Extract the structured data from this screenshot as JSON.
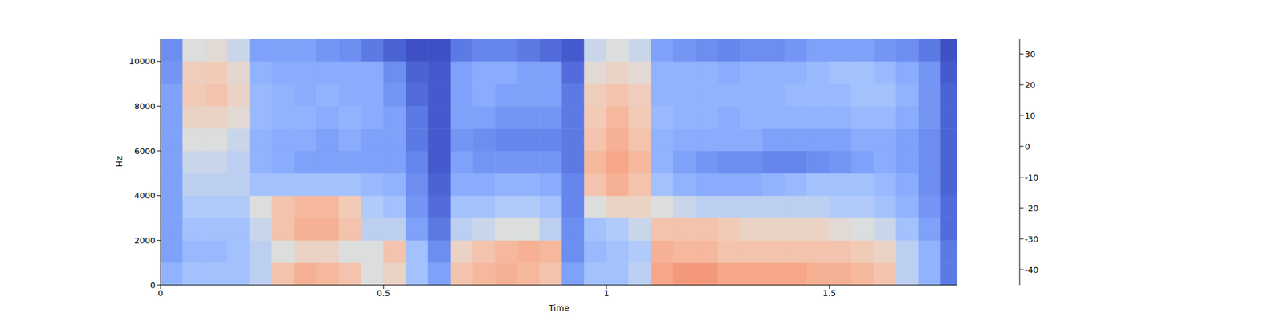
{
  "chart_data": {
    "type": "heatmap",
    "xlabel": "Time",
    "ylabel": "Hz",
    "xlim": [
      0,
      1.787
    ],
    "xticks": [
      0,
      0.5,
      1,
      1.5
    ],
    "ylim": [
      0,
      11025
    ],
    "yticks": [
      0,
      2000,
      4000,
      6000,
      8000,
      10000
    ],
    "x_edges": [
      0,
      0.05,
      0.1,
      0.15,
      0.2,
      0.25,
      0.3,
      0.35,
      0.4,
      0.45,
      0.5,
      0.55,
      0.6,
      0.65,
      0.7,
      0.75,
      0.8,
      0.85,
      0.9,
      0.95,
      1.0,
      1.05,
      1.1,
      1.15,
      1.2,
      1.25,
      1.3,
      1.35,
      1.4,
      1.45,
      1.5,
      1.55,
      1.6,
      1.65,
      1.7,
      1.75,
      1.8
    ],
    "y_edges": [
      0,
      1000,
      2000,
      3000,
      4000,
      5000,
      6000,
      7000,
      8000,
      9000,
      10000,
      11025
    ],
    "cells": [
      [
        -20,
        -15,
        -15,
        -15,
        -10,
        5,
        10,
        8,
        5,
        -5,
        0,
        -15,
        -25,
        5,
        8,
        10,
        8,
        5,
        -25,
        -15,
        -15,
        -10,
        12,
        15,
        15,
        12,
        12,
        12,
        12,
        10,
        10,
        8,
        5,
        -10,
        -20,
        -35
      ],
      [
        -25,
        -18,
        -18,
        -15,
        -10,
        -5,
        0,
        0,
        -5,
        -5,
        5,
        -15,
        -30,
        0,
        5,
        8,
        10,
        8,
        -30,
        -18,
        -15,
        -12,
        10,
        8,
        8,
        5,
        5,
        5,
        5,
        5,
        5,
        3,
        0,
        -10,
        -20,
        -35
      ],
      [
        -25,
        -15,
        -15,
        -15,
        -8,
        5,
        10,
        10,
        5,
        -10,
        -10,
        -25,
        -35,
        -10,
        -8,
        -5,
        -5,
        -10,
        -30,
        -15,
        -12,
        -8,
        5,
        5,
        5,
        3,
        0,
        0,
        0,
        0,
        -3,
        -5,
        -8,
        -15,
        -25,
        -38
      ],
      [
        -25,
        -12,
        -12,
        -12,
        -5,
        5,
        8,
        8,
        3,
        -12,
        -15,
        -28,
        -38,
        -15,
        -15,
        -12,
        -12,
        -15,
        -32,
        -5,
        0,
        0,
        -5,
        -8,
        -10,
        -10,
        -10,
        -10,
        -10,
        -10,
        -12,
        -12,
        -15,
        -20,
        -28,
        -38
      ],
      [
        -25,
        -10,
        -10,
        -10,
        -15,
        -15,
        -15,
        -15,
        -15,
        -18,
        -20,
        -30,
        -40,
        -22,
        -22,
        -20,
        -20,
        -22,
        -32,
        5,
        10,
        5,
        -15,
        -20,
        -22,
        -22,
        -22,
        -20,
        -18,
        -15,
        -15,
        -15,
        -18,
        -22,
        -30,
        -40
      ],
      [
        -25,
        -8,
        -8,
        -10,
        -20,
        -22,
        -25,
        -25,
        -25,
        -25,
        -25,
        -32,
        -42,
        -25,
        -28,
        -28,
        -28,
        -28,
        -35,
        8,
        12,
        8,
        -20,
        -25,
        -28,
        -30,
        -30,
        -32,
        -32,
        -30,
        -28,
        -25,
        -22,
        -25,
        -30,
        -40
      ],
      [
        -25,
        -5,
        -5,
        -8,
        -20,
        -22,
        -22,
        -25,
        -22,
        -25,
        -25,
        -35,
        -42,
        -28,
        -30,
        -32,
        -32,
        -32,
        -35,
        5,
        10,
        5,
        -20,
        -22,
        -22,
        -22,
        -22,
        -25,
        -25,
        -25,
        -25,
        -22,
        -22,
        -25,
        -30,
        -40
      ],
      [
        -25,
        0,
        0,
        -3,
        -18,
        -20,
        -20,
        -22,
        -20,
        -22,
        -25,
        -35,
        -42,
        -25,
        -25,
        -28,
        -28,
        -28,
        -35,
        3,
        8,
        3,
        -18,
        -20,
        -20,
        -22,
        -20,
        -20,
        -20,
        -20,
        -20,
        -18,
        -18,
        -22,
        -28,
        -40
      ],
      [
        -25,
        3,
        5,
        0,
        -18,
        -20,
        -22,
        -20,
        -22,
        -22,
        -28,
        -38,
        -42,
        -25,
        -22,
        -25,
        -25,
        -25,
        -35,
        2,
        5,
        2,
        -20,
        -20,
        -20,
        -20,
        -20,
        -20,
        -18,
        -18,
        -18,
        -15,
        -15,
        -20,
        -28,
        -40
      ],
      [
        -28,
        2,
        3,
        -2,
        -20,
        -22,
        -22,
        -22,
        -22,
        -22,
        -30,
        -40,
        -42,
        -25,
        -22,
        -22,
        -25,
        -25,
        -38,
        -3,
        0,
        -3,
        -20,
        -20,
        -20,
        -22,
        -20,
        -20,
        -20,
        -18,
        -15,
        -15,
        -18,
        -22,
        -28,
        -42
      ],
      [
        -30,
        -5,
        -3,
        -8,
        -25,
        -25,
        -25,
        -28,
        -30,
        -35,
        -40,
        -44,
        -44,
        -35,
        -32,
        -32,
        -35,
        -38,
        -42,
        -8,
        -5,
        -8,
        -25,
        -28,
        -30,
        -32,
        -30,
        -30,
        -28,
        -25,
        -25,
        -25,
        -28,
        -30,
        -35,
        -44
      ]
    ],
    "colorbar": {
      "lim": [
        -45,
        35
      ],
      "ticks": [
        -40,
        -30,
        -20,
        -10,
        0,
        10,
        20,
        30
      ]
    }
  }
}
